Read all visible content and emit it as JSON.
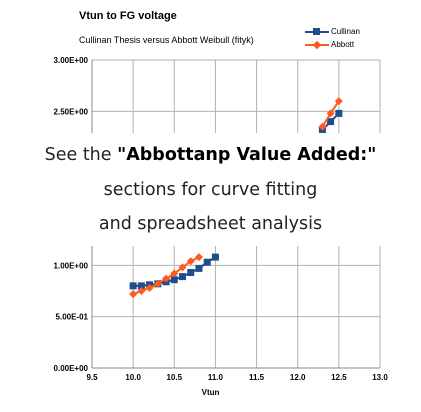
{
  "chart_data": {
    "type": "line",
    "title": "Vtun to FG voltage",
    "subtitle": "Cullinan Thesis versus Abbott Weibull (fityk)",
    "xlabel": "Vtun",
    "ylabel": "",
    "xlim": [
      9.5,
      13.0
    ],
    "ylim": [
      0,
      3.0
    ],
    "x_ticks": [
      "9.5",
      "10.0",
      "10.5",
      "11.0",
      "11.5",
      "12.0",
      "12.5",
      "13.0"
    ],
    "y_ticks": [
      "0.00E+00",
      "5.00E-01",
      "1.00E+00",
      "2.50E+00",
      "3.00E+00"
    ],
    "y_tick_values": [
      0.0,
      0.5,
      1.0,
      2.5,
      3.0
    ],
    "grid": true,
    "legend": "top-right",
    "series": [
      {
        "name": "Cullinan",
        "color": "#1f4e8c",
        "marker": "square",
        "x": [
          10.0,
          10.1,
          10.2,
          10.3,
          10.4,
          10.5,
          10.6,
          10.7,
          10.8,
          10.9,
          11.0,
          12.3,
          12.4,
          12.5
        ],
        "y": [
          0.8,
          0.8,
          0.81,
          0.82,
          0.84,
          0.86,
          0.89,
          0.93,
          0.97,
          1.03,
          1.08,
          2.32,
          2.4,
          2.48
        ]
      },
      {
        "name": "Abbott",
        "color": "#ff5a1f",
        "marker": "diamond",
        "x": [
          10.0,
          10.1,
          10.2,
          10.3,
          10.4,
          10.5,
          10.6,
          10.7,
          10.8,
          12.3,
          12.4,
          12.5
        ],
        "y": [
          0.72,
          0.75,
          0.78,
          0.82,
          0.87,
          0.92,
          0.98,
          1.04,
          1.08,
          2.35,
          2.48,
          2.6
        ]
      }
    ]
  },
  "overlay": {
    "line1_prefix": "See the ",
    "line1_bold": "\"Abbottanp Value Added:\"",
    "line2": "sections for curve fitting",
    "line3": "and spreadsheet analysis"
  }
}
